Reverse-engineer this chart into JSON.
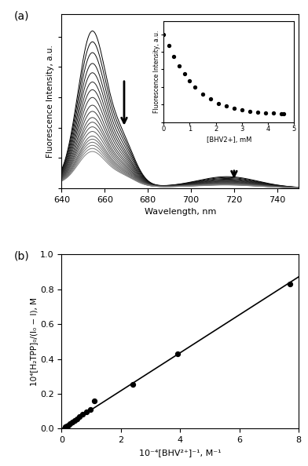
{
  "panel_a_label": "(a)",
  "panel_b_label": "(b)",
  "spectra_n_curves": 20,
  "spectra_peak_wl": 654,
  "spectra_peak_heights": [
    1.0,
    0.93,
    0.86,
    0.79,
    0.73,
    0.67,
    0.62,
    0.57,
    0.52,
    0.48,
    0.44,
    0.41,
    0.38,
    0.35,
    0.32,
    0.3,
    0.28,
    0.26,
    0.24,
    0.22
  ],
  "spectra_secondary_peak_wl": 717,
  "spectra_secondary_heights": [
    0.072,
    0.066,
    0.06,
    0.055,
    0.05,
    0.046,
    0.042,
    0.039,
    0.036,
    0.033,
    0.03,
    0.028,
    0.026,
    0.024,
    0.022,
    0.021,
    0.02,
    0.019,
    0.018,
    0.017
  ],
  "spectra_shoulder_wl": 668,
  "spectra_shoulder_heights": [
    0.28,
    0.26,
    0.24,
    0.22,
    0.2,
    0.185,
    0.17,
    0.156,
    0.143,
    0.132,
    0.121,
    0.112,
    0.103,
    0.095,
    0.088,
    0.082,
    0.076,
    0.071,
    0.066,
    0.062
  ],
  "xlabel_a": "Wavelength, nm",
  "ylabel_a": "Fluorescence Intensity, a.u.",
  "inset_x": [
    0,
    0.2,
    0.4,
    0.6,
    0.8,
    1.0,
    1.2,
    1.5,
    1.8,
    2.1,
    2.4,
    2.7,
    3.0,
    3.3,
    3.6,
    3.9,
    4.2,
    4.5,
    4.6
  ],
  "inset_y": [
    1.0,
    0.87,
    0.75,
    0.64,
    0.55,
    0.47,
    0.4,
    0.32,
    0.26,
    0.21,
    0.18,
    0.155,
    0.138,
    0.125,
    0.115,
    0.107,
    0.1,
    0.095,
    0.092
  ],
  "inset_xlabel": "[BHV2+], mM",
  "inset_ylabel": "Fluorescence Intensity, a.u.",
  "panel_b_scatter_x": [
    0.13,
    0.17,
    0.22,
    0.28,
    0.35,
    0.43,
    0.52,
    0.61,
    0.71,
    0.83,
    0.96,
    1.11,
    2.4,
    3.9,
    7.7
  ],
  "panel_b_scatter_y": [
    0.01,
    0.015,
    0.02,
    0.028,
    0.038,
    0.048,
    0.058,
    0.07,
    0.082,
    0.095,
    0.11,
    0.16,
    0.255,
    0.43,
    0.83
  ],
  "panel_b_line_x": [
    0.0,
    8.0
  ],
  "panel_b_line_slope": 0.109,
  "panel_b_line_intercept": 0.0,
  "xlabel_b": "10⁻⁴[BHV²⁺]⁻¹, M⁻¹",
  "ylabel_b": "10⁴[H₂TPP]₀/(I₀ − I), M",
  "xlim_b": [
    0,
    8
  ],
  "ylim_b": [
    0,
    1.0
  ],
  "xticks_b": [
    0,
    2,
    4,
    6,
    8
  ],
  "yticks_b": [
    0.0,
    0.2,
    0.4,
    0.6,
    0.8,
    1.0
  ],
  "background_color": "#ffffff",
  "line_color": "#000000",
  "scatter_color": "#000000"
}
